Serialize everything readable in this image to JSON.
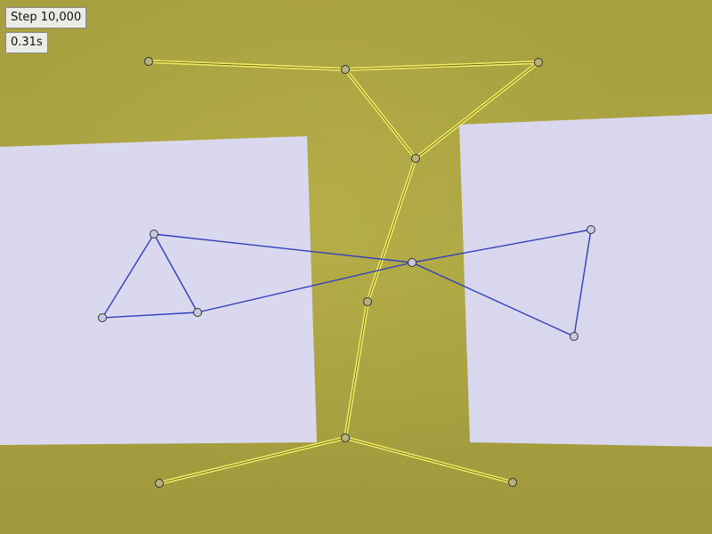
{
  "hud": {
    "step_label": "Step 10,000",
    "time_label": "0.31s"
  },
  "colors": {
    "table": "#a9a341",
    "paper": "#d8d8ee",
    "yellow_link": "#f2ec62",
    "blue_link": "#2f3fbe",
    "node_stroke": "#333333",
    "node_fill": "#b7b27a"
  },
  "icons": {
    "joint": "joint-node"
  }
}
